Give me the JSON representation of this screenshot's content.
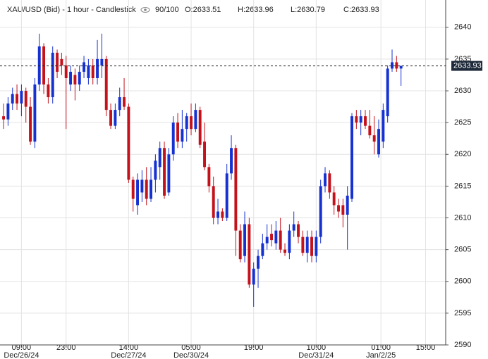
{
  "header": {
    "title": "XAU/USD (Bid) - 1 hour - Candlestick",
    "counter": "90/100",
    "open": "O:2633.51",
    "high": "H:2633.96",
    "low": "L:2630.79",
    "close": "C:2633.93"
  },
  "chart_data": {
    "type": "candlestick",
    "up_color": "#1531d1",
    "down_color": "#c4121c",
    "grid": true,
    "open": [
      2626,
      2625.5,
      2628,
      2629.5,
      2628,
      2630,
      2627.5,
      2622,
      2631,
      2637,
      2631,
      2629,
      2636,
      2635,
      2634,
      2631,
      2632.5,
      2631,
      2633,
      2632,
      2634,
      2632,
      2634,
      2635,
      2627,
      2624.5,
      2627,
      2629,
      2627.5,
      2616,
      2612,
      2614,
      2616,
      2613,
      2616,
      2618,
      2621,
      2614,
      2620,
      2625,
      2622,
      2624,
      2626,
      2624,
      2627,
      2622,
      2618,
      2615,
      2610,
      2611,
      2610,
      2617,
      2621,
      2608,
      2604,
      2609,
      2599.5,
      2602,
      2604,
      2606,
      2607.5,
      2606,
      2608,
      2605,
      2604.5,
      2608,
      2609,
      2607,
      2604.5,
      2607,
      2604,
      2607,
      2615,
      2617,
      2614,
      2612,
      2612,
      2610.5,
      2613,
      2626,
      2625,
      2626,
      2624.5,
      2623,
      2620,
      2622,
      2626,
      2633.5,
      2634.5,
      2633.51
    ],
    "high": [
      2628,
      2629,
      2630.5,
      2631,
      2631,
      2630.5,
      2629,
      2632,
      2639,
      2637.5,
      2632,
      2637,
      2636.5,
      2636,
      2635.5,
      2634,
      2633.5,
      2634,
      2635.5,
      2635,
      2635,
      2638,
      2639,
      2635.5,
      2628,
      2628,
      2630.5,
      2632,
      2628,
      2616.5,
      2617,
      2617.5,
      2618,
      2618,
      2620,
      2622,
      2622,
      2621,
      2626,
      2626.5,
      2627,
      2626.5,
      2628,
      2628,
      2627.5,
      2625,
      2618.5,
      2616.5,
      2613,
      2611.5,
      2618.5,
      2623,
      2621.5,
      2609,
      2611,
      2610,
      2603,
      2605,
      2607.5,
      2609,
      2609,
      2609.5,
      2610,
      2606,
      2609,
      2611,
      2609.5,
      2608,
      2608,
      2608,
      2608,
      2616,
      2618,
      2617.5,
      2615,
      2613,
      2613,
      2615,
      2626.5,
      2627,
      2627,
      2627,
      2627,
      2626,
      2625.5,
      2628,
      2634,
      2636.5,
      2635.5,
      2633.96
    ],
    "low": [
      2624,
      2624.5,
      2627,
      2627,
      2626,
      2625,
      2621.5,
      2621,
      2630,
      2629.5,
      2628,
      2628,
      2632,
      2632.5,
      2624,
      2630,
      2628.5,
      2630,
      2632,
      2631,
      2631,
      2631,
      2632,
      2626,
      2624,
      2624,
      2626,
      2627,
      2615.5,
      2611,
      2610.5,
      2612.5,
      2612,
      2612.5,
      2614,
      2616,
      2613,
      2613.5,
      2619,
      2621,
      2621,
      2622,
      2623,
      2623.5,
      2621,
      2617.5,
      2614,
      2609,
      2609,
      2609.5,
      2609.5,
      2616,
      2604,
      2603,
      2603,
      2599,
      2596,
      2599,
      2603.5,
      2605,
      2605.5,
      2605,
      2604.5,
      2604,
      2603.5,
      2607,
      2606,
      2604,
      2603,
      2603,
      2603,
      2606,
      2614,
      2613,
      2610.5,
      2610,
      2608.5,
      2605,
      2612.5,
      2624,
      2623,
      2624,
      2622.5,
      2620,
      2619.5,
      2621,
      2625,
      2633,
      2633,
      2630.79
    ],
    "close": [
      2625.5,
      2628,
      2629.5,
      2628,
      2630,
      2627.5,
      2622,
      2631,
      2637,
      2631,
      2629,
      2636,
      2633,
      2634,
      2632,
      2633,
      2631,
      2633,
      2634.5,
      2634,
      2632,
      2635,
      2635,
      2627,
      2624.5,
      2627,
      2629,
      2627.5,
      2616,
      2613,
      2616,
      2616,
      2613,
      2616,
      2619,
      2621,
      2613.5,
      2620,
      2625,
      2622,
      2624,
      2626,
      2624,
      2627,
      2621.5,
      2618,
      2615,
      2610,
      2611,
      2610,
      2617,
      2621,
      2608,
      2603.5,
      2609,
      2599.5,
      2602,
      2604,
      2606,
      2607,
      2606.5,
      2608,
      2605,
      2604.5,
      2608,
      2609,
      2607,
      2604.5,
      2607,
      2604,
      2607,
      2615,
      2617,
      2614,
      2612,
      2611,
      2610.5,
      2613.5,
      2626,
      2625,
      2626,
      2624.5,
      2623,
      2622,
      2624,
      2627,
      2633.5,
      2634.5,
      2633.5,
      2633.93
    ],
    "xlim": [
      -0.8,
      99
    ],
    "xticks": [
      {
        "value": 4,
        "label": "09:00",
        "date": "Dec/26/24"
      },
      {
        "value": 14,
        "label": "23:00"
      },
      {
        "value": 28,
        "label": "14:00",
        "date": "Dec/27/24"
      },
      {
        "value": 42,
        "label": "05:00",
        "date": "Dec/30/24"
      },
      {
        "value": 56,
        "label": "19:00"
      },
      {
        "value": 70,
        "label": "10:00",
        "date": "Dec/31/24"
      },
      {
        "value": 84.5,
        "label": "01:00",
        "date": "Jan/2/25"
      },
      {
        "value": 94.5,
        "label": "15:00"
      }
    ],
    "ylim": [
      2590,
      2644.3
    ],
    "yticks": [
      2590,
      2595,
      2600,
      2605,
      2610,
      2615,
      2620,
      2625,
      2630,
      2635,
      2640
    ],
    "price_line": {
      "value": 2633.93,
      "label": "2633.93"
    }
  }
}
